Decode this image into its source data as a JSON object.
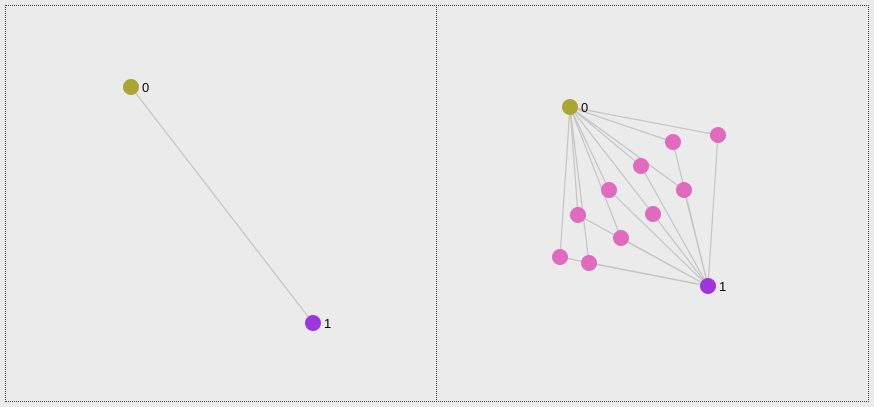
{
  "panels": [
    {
      "name": "left",
      "nodes": [
        {
          "id": "n0",
          "label": "0",
          "color": "#aba533"
        },
        {
          "id": "n1",
          "label": "1",
          "color": "#9c35de"
        }
      ],
      "edges": [
        [
          "n0",
          "n1"
        ]
      ]
    },
    {
      "name": "right",
      "nodes": [
        {
          "id": "n0",
          "label": "0",
          "color": "#aba533"
        },
        {
          "id": "n1",
          "label": "1",
          "color": "#9c35de"
        },
        {
          "id": "p1",
          "label": "",
          "color": "#e06bbe"
        },
        {
          "id": "p2",
          "label": "",
          "color": "#e06bbe"
        },
        {
          "id": "p3",
          "label": "",
          "color": "#e06bbe"
        },
        {
          "id": "p4",
          "label": "",
          "color": "#e06bbe"
        },
        {
          "id": "p5",
          "label": "",
          "color": "#e06bbe"
        },
        {
          "id": "p6",
          "label": "",
          "color": "#e06bbe"
        },
        {
          "id": "p7",
          "label": "",
          "color": "#e06bbe"
        },
        {
          "id": "p8",
          "label": "",
          "color": "#e06bbe"
        },
        {
          "id": "p9",
          "label": "",
          "color": "#e06bbe"
        },
        {
          "id": "p10",
          "label": "",
          "color": "#e06bbe"
        }
      ],
      "edges": [
        [
          "n0",
          "p1"
        ],
        [
          "p1",
          "n1"
        ],
        [
          "n0",
          "p2"
        ],
        [
          "p2",
          "n1"
        ],
        [
          "n0",
          "p3"
        ],
        [
          "p3",
          "n1"
        ],
        [
          "n0",
          "p4"
        ],
        [
          "p4",
          "n1"
        ],
        [
          "n0",
          "p5"
        ],
        [
          "p5",
          "n1"
        ],
        [
          "n0",
          "p6"
        ],
        [
          "p6",
          "n1"
        ],
        [
          "n0",
          "p7"
        ],
        [
          "p7",
          "n1"
        ],
        [
          "n0",
          "p8"
        ],
        [
          "p8",
          "n1"
        ],
        [
          "n0",
          "p9"
        ],
        [
          "p9",
          "n1"
        ],
        [
          "n0",
          "p10"
        ],
        [
          "p10",
          "n1"
        ]
      ]
    }
  ]
}
